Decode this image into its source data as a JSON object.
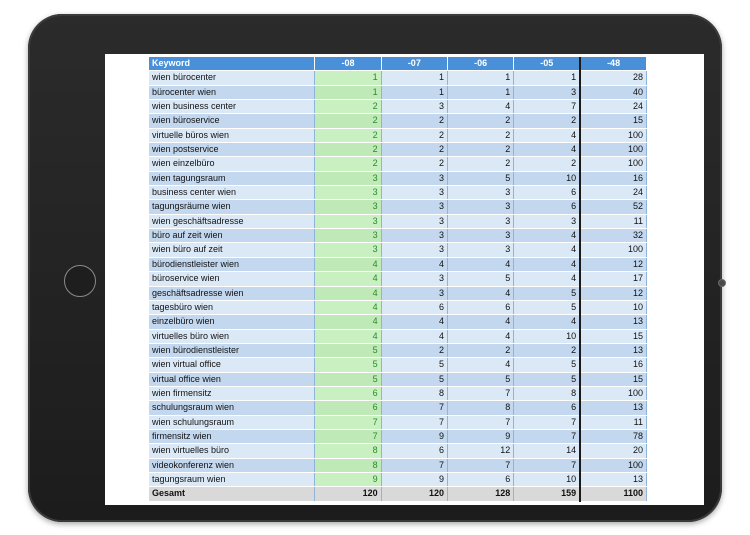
{
  "table": {
    "headers": [
      "Keyword",
      "-08",
      "-07",
      "-06",
      "-05",
      "-48"
    ],
    "rows": [
      [
        "wien bürocenter",
        "1",
        "1",
        "1",
        "1",
        "28"
      ],
      [
        "bürocenter wien",
        "1",
        "1",
        "1",
        "3",
        "40"
      ],
      [
        "wien business center",
        "2",
        "3",
        "4",
        "7",
        "24"
      ],
      [
        "wien büroservice",
        "2",
        "2",
        "2",
        "2",
        "15"
      ],
      [
        "virtuelle büros wien",
        "2",
        "2",
        "2",
        "4",
        "100"
      ],
      [
        "wien postservice",
        "2",
        "2",
        "2",
        "4",
        "100"
      ],
      [
        "wien einzelbüro",
        "2",
        "2",
        "2",
        "2",
        "100"
      ],
      [
        "wien tagungsraum",
        "3",
        "3",
        "5",
        "10",
        "16"
      ],
      [
        "business center wien",
        "3",
        "3",
        "3",
        "6",
        "24"
      ],
      [
        "tagungsräume wien",
        "3",
        "3",
        "3",
        "6",
        "52"
      ],
      [
        "wien geschäftsadresse",
        "3",
        "3",
        "3",
        "3",
        "11"
      ],
      [
        "büro auf zeit wien",
        "3",
        "3",
        "3",
        "4",
        "32"
      ],
      [
        "wien büro auf zeit",
        "3",
        "3",
        "3",
        "4",
        "100"
      ],
      [
        "bürodienstleister wien",
        "4",
        "4",
        "4",
        "4",
        "12"
      ],
      [
        "büroservice wien",
        "4",
        "3",
        "5",
        "4",
        "17"
      ],
      [
        "geschäftsadresse wien",
        "4",
        "3",
        "4",
        "5",
        "12"
      ],
      [
        "tagesbüro wien",
        "4",
        "6",
        "6",
        "5",
        "10"
      ],
      [
        "einzelbüro wien",
        "4",
        "4",
        "4",
        "4",
        "13"
      ],
      [
        "virtuelles büro wien",
        "4",
        "4",
        "4",
        "10",
        "15"
      ],
      [
        "wien bürodienstleister",
        "5",
        "2",
        "2",
        "2",
        "13"
      ],
      [
        "wien virtual office",
        "5",
        "5",
        "4",
        "5",
        "16"
      ],
      [
        "virtual office wien",
        "5",
        "5",
        "5",
        "5",
        "15"
      ],
      [
        "wien firmensitz",
        "6",
        "8",
        "7",
        "8",
        "100"
      ],
      [
        "schulungsraum wien",
        "6",
        "7",
        "8",
        "6",
        "13"
      ],
      [
        "wien schulungsraum",
        "7",
        "7",
        "7",
        "7",
        "11"
      ],
      [
        "firmensitz wien",
        "7",
        "9",
        "9",
        "7",
        "78"
      ],
      [
        "wien virtuelles büro",
        "8",
        "6",
        "12",
        "14",
        "20"
      ],
      [
        "videokonferenz wien",
        "8",
        "7",
        "7",
        "7",
        "100"
      ],
      [
        "tagungsraum wien",
        "9",
        "9",
        "6",
        "10",
        "13"
      ]
    ],
    "total": [
      "Gesamt",
      "120",
      "120",
      "128",
      "159",
      "1100"
    ]
  },
  "colors": {
    "header_bg": "#4a90d9",
    "row_light": "#dbe9f7",
    "row_dark": "#c3d8ef",
    "highlight_col_bg": "#c8f0c0",
    "highlight_col_text": "#2a8a2a",
    "total_bg": "#d9d9d9",
    "device_frame": "#1c1c1c"
  }
}
